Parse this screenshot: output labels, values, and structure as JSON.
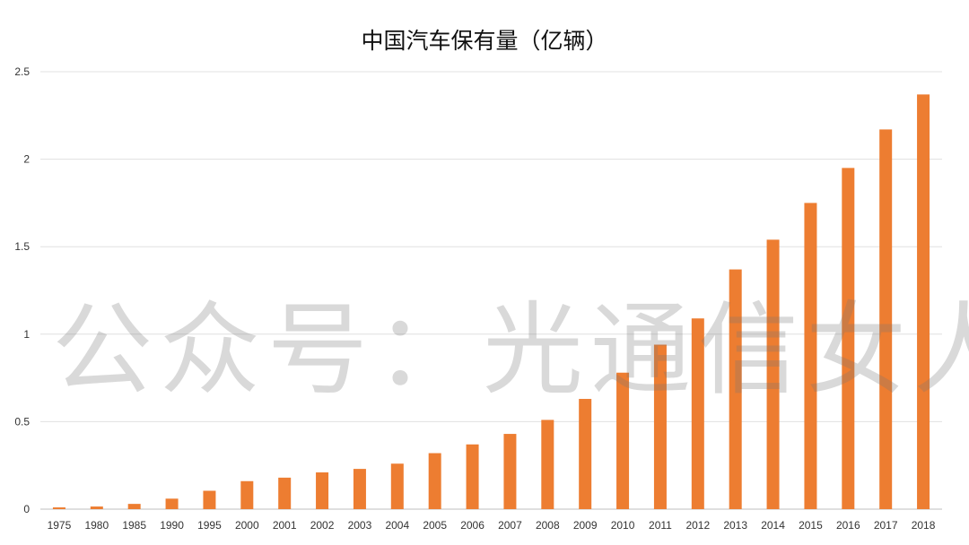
{
  "chart_data": {
    "type": "bar",
    "title": "中国汽车保有量（亿辆）",
    "xlabel": "",
    "ylabel": "",
    "ylim": [
      0,
      2.5
    ],
    "yticks": [
      "0",
      "0.5",
      "1",
      "1.5",
      "2",
      "2.5"
    ],
    "grid": true,
    "legend": "none",
    "bar_color": "#ED7D31",
    "categories": [
      "1975",
      "1980",
      "1985",
      "1990",
      "1995",
      "2000",
      "2001",
      "2002",
      "2003",
      "2004",
      "2005",
      "2006",
      "2007",
      "2008",
      "2009",
      "2010",
      "2011",
      "2012",
      "2013",
      "2014",
      "2015",
      "2016",
      "2017",
      "2018"
    ],
    "values": [
      0.01,
      0.015,
      0.03,
      0.06,
      0.105,
      0.16,
      0.18,
      0.21,
      0.23,
      0.26,
      0.32,
      0.37,
      0.43,
      0.51,
      0.63,
      0.78,
      0.94,
      1.09,
      1.37,
      1.54,
      1.75,
      1.95,
      2.17,
      2.37
    ]
  },
  "watermark": "公众号：光通信女人"
}
